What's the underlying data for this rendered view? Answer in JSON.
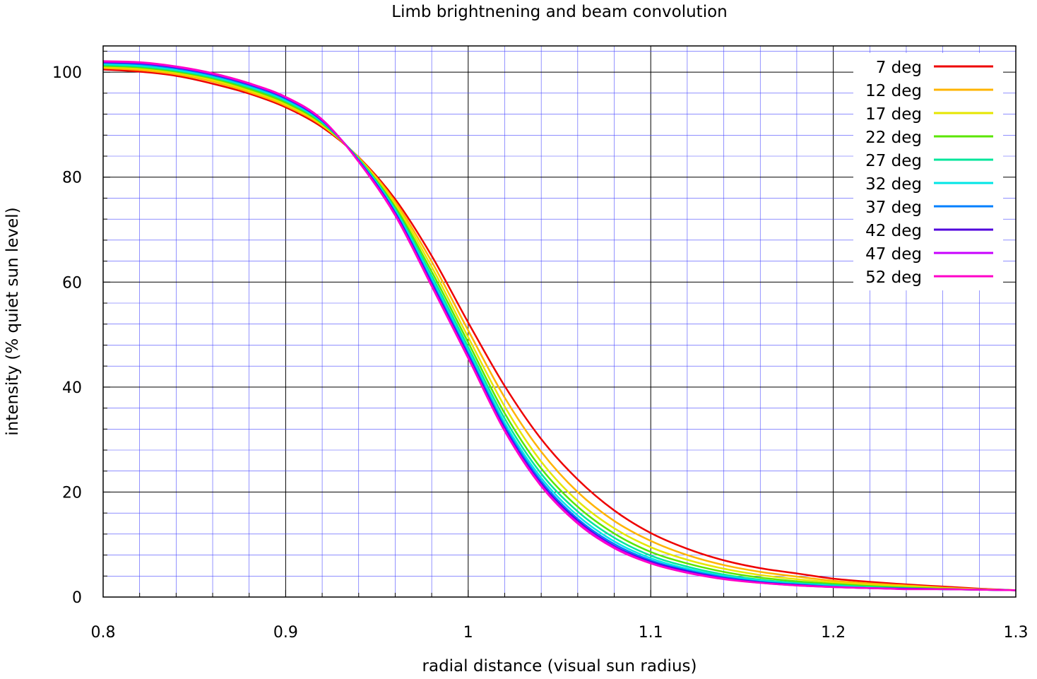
{
  "chart_data": {
    "type": "line",
    "title": "Limb brightnening and beam convolution",
    "xlabel": "radial distance (visual sun radius)",
    "ylabel": "intensity (% quiet sun level)",
    "xlim": [
      0.8,
      1.3
    ],
    "ylim": [
      0,
      105
    ],
    "x_ticks": [
      "0.8",
      "0.9",
      "1",
      "1.1",
      "1.2",
      "1.3"
    ],
    "y_ticks": [
      "0",
      "20",
      "40",
      "60",
      "80",
      "100"
    ],
    "grid": true,
    "legend_position": "top-right",
    "x": [
      0.8,
      0.82,
      0.84,
      0.86,
      0.88,
      0.9,
      0.92,
      0.94,
      0.96,
      0.98,
      1.0,
      1.02,
      1.04,
      1.06,
      1.08,
      1.1,
      1.12,
      1.14,
      1.16,
      1.18,
      1.2,
      1.22,
      1.24,
      1.26,
      1.28,
      1.3
    ],
    "series": [
      {
        "name": "7 deg",
        "color": "#ee0000",
        "values": [
          100.5,
          100.1,
          99.3,
          97.8,
          95.9,
          93.3,
          89.5,
          83.8,
          75.8,
          65.0,
          52.3,
          40.2,
          30.1,
          22.4,
          16.5,
          12.2,
          9.2,
          7.0,
          5.5,
          4.5,
          3.5,
          2.9,
          2.4,
          2.0,
          1.6,
          1.3
        ]
      },
      {
        "name": "12 deg",
        "color": "#ffb400",
        "values": [
          100.8,
          100.4,
          99.6,
          98.2,
          96.2,
          93.6,
          89.8,
          83.7,
          75.3,
          63.9,
          50.8,
          38.0,
          27.7,
          20.0,
          14.5,
          10.7,
          8.0,
          6.1,
          4.8,
          3.9,
          3.1,
          2.6,
          2.2,
          1.8,
          1.5,
          1.3
        ]
      },
      {
        "name": "17 deg",
        "color": "#e6e600",
        "values": [
          101.0,
          100.7,
          99.9,
          98.5,
          96.5,
          93.9,
          90.0,
          83.6,
          74.8,
          62.9,
          49.5,
          36.3,
          25.8,
          18.3,
          13.1,
          9.5,
          7.1,
          5.4,
          4.2,
          3.4,
          2.8,
          2.3,
          2.0,
          1.7,
          1.5,
          1.3
        ]
      },
      {
        "name": "22 deg",
        "color": "#5ae600",
        "values": [
          101.2,
          100.9,
          100.1,
          98.8,
          96.8,
          94.2,
          90.2,
          83.5,
          74.3,
          62.0,
          48.5,
          35.0,
          24.5,
          17.2,
          12.1,
          8.6,
          6.4,
          4.8,
          3.7,
          3.0,
          2.5,
          2.1,
          1.8,
          1.6,
          1.4,
          1.3
        ]
      },
      {
        "name": "27 deg",
        "color": "#00e69b",
        "values": [
          101.4,
          101.1,
          100.3,
          99.0,
          97.1,
          94.5,
          90.4,
          83.4,
          73.9,
          61.2,
          47.6,
          34.0,
          23.5,
          16.3,
          11.3,
          7.9,
          5.8,
          4.3,
          3.3,
          2.7,
          2.3,
          1.9,
          1.7,
          1.5,
          1.4,
          1.3
        ]
      },
      {
        "name": "32 deg",
        "color": "#00e6e6",
        "values": [
          101.6,
          101.3,
          100.5,
          99.2,
          97.3,
          94.7,
          90.6,
          83.3,
          73.6,
          60.6,
          46.9,
          33.2,
          22.7,
          15.5,
          10.6,
          7.4,
          5.4,
          4.0,
          3.1,
          2.5,
          2.1,
          1.8,
          1.6,
          1.5,
          1.4,
          1.3
        ]
      },
      {
        "name": "37 deg",
        "color": "#0080ff",
        "values": [
          101.8,
          101.5,
          100.7,
          99.4,
          97.5,
          94.9,
          90.7,
          83.2,
          73.3,
          60.1,
          46.4,
          32.6,
          22.1,
          14.9,
          10.1,
          7.0,
          5.1,
          3.8,
          2.9,
          2.4,
          2.0,
          1.7,
          1.6,
          1.5,
          1.4,
          1.3
        ]
      },
      {
        "name": "42 deg",
        "color": "#5000dc",
        "values": [
          101.9,
          101.7,
          100.9,
          99.6,
          97.7,
          95.1,
          90.8,
          83.1,
          73.1,
          59.7,
          46.0,
          32.1,
          21.6,
          14.5,
          9.7,
          6.7,
          4.9,
          3.6,
          2.8,
          2.3,
          1.9,
          1.7,
          1.6,
          1.5,
          1.4,
          1.3
        ]
      },
      {
        "name": "47 deg",
        "color": "#c800ff",
        "values": [
          102.0,
          101.8,
          101.0,
          99.7,
          97.8,
          95.2,
          90.9,
          83.0,
          72.9,
          59.4,
          45.7,
          31.8,
          21.3,
          14.2,
          9.5,
          6.5,
          4.7,
          3.5,
          2.7,
          2.2,
          1.9,
          1.7,
          1.5,
          1.5,
          1.4,
          1.3
        ]
      },
      {
        "name": "52 deg",
        "color": "#ff00c8",
        "values": [
          102.1,
          101.9,
          101.1,
          99.8,
          97.9,
          95.3,
          91.0,
          82.9,
          72.7,
          59.2,
          45.5,
          31.6,
          21.1,
          14.0,
          9.3,
          6.4,
          4.6,
          3.4,
          2.7,
          2.2,
          1.9,
          1.7,
          1.5,
          1.5,
          1.4,
          1.3
        ]
      }
    ]
  }
}
